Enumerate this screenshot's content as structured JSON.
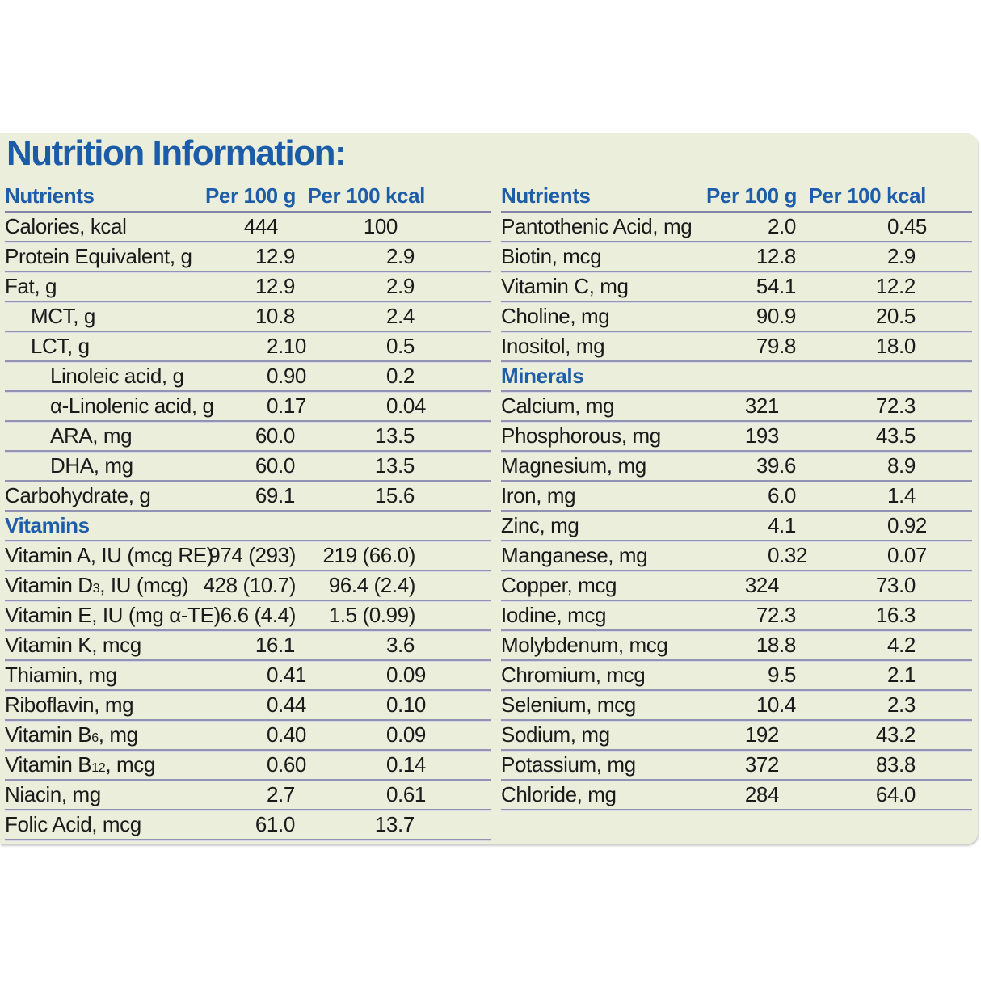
{
  "page": {
    "title": "Nutrition Information:"
  },
  "theme": {
    "panel_bg": "#eaeedb",
    "title_color": "#1b5ba7",
    "header_color": "#1e5da9",
    "text_color": "#1a1a1a",
    "line_color": "#9292b5"
  },
  "columns": {
    "nutrient": "Nutrients",
    "per100g": "Per 100 g",
    "per100kcal": "Per 100 kcal"
  },
  "tables": {
    "left": {
      "rows": [
        {
          "label": "Calories, kcal",
          "per100g": "444",
          "per100kcal": "100",
          "indent": 0
        },
        {
          "label": "Protein Equivalent, g",
          "per100g": "12.9",
          "per100kcal": "2.9",
          "indent": 0
        },
        {
          "label": "Fat, g",
          "per100g": "12.9",
          "per100kcal": "2.9",
          "indent": 0
        },
        {
          "label": "MCT, g",
          "per100g": "10.8",
          "per100kcal": "2.4",
          "indent": 1
        },
        {
          "label": "LCT, g",
          "per100g": "2.10",
          "per100kcal": "0.5",
          "indent": 1
        },
        {
          "label": "Linoleic acid, g",
          "per100g": "0.90",
          "per100kcal": "0.2",
          "indent": 2
        },
        {
          "label": "α-Linolenic acid, g",
          "per100g": "0.17",
          "per100kcal": "0.04",
          "indent": 2
        },
        {
          "label": "ARA, mg",
          "per100g": "60.0",
          "per100kcal": "13.5",
          "indent": 2
        },
        {
          "label": "DHA, mg",
          "per100g": "60.0",
          "per100kcal": "13.5",
          "indent": 2
        },
        {
          "label": "Carbohydrate, g",
          "per100g": "69.1",
          "per100kcal": "15.6",
          "indent": 0
        },
        {
          "section": "Vitamins"
        },
        {
          "label": "Vitamin A, IU (mcg RE)",
          "per100g": "974 (293)",
          "per100kcal": "219 (66.0)",
          "indent": 0
        },
        {
          "label": "Vitamin D~3~, IU (mcg)",
          "per100g": "428 (10.7)",
          "per100kcal": "96.4 (2.4)",
          "indent": 0
        },
        {
          "label": "Vitamin E, IU (mg α-TE)",
          "per100g": "6.6 (4.4)",
          "per100kcal": "1.5 (0.99)",
          "indent": 0
        },
        {
          "label": "Vitamin K, mcg",
          "per100g": "16.1",
          "per100kcal": "3.6",
          "indent": 0
        },
        {
          "label": "Thiamin, mg",
          "per100g": "0.41",
          "per100kcal": "0.09",
          "indent": 0
        },
        {
          "label": "Riboflavin, mg",
          "per100g": "0.44",
          "per100kcal": "0.10",
          "indent": 0
        },
        {
          "label": "Vitamin B~6~, mg",
          "per100g": "0.40",
          "per100kcal": "0.09",
          "indent": 0
        },
        {
          "label": "Vitamin B~12~, mcg",
          "per100g": "0.60",
          "per100kcal": "0.14",
          "indent": 0
        },
        {
          "label": "Niacin, mg",
          "per100g": "2.7",
          "per100kcal": "0.61",
          "indent": 0
        },
        {
          "label": "Folic Acid, mcg",
          "per100g": "61.0",
          "per100kcal": "13.7",
          "indent": 0
        }
      ]
    },
    "right": {
      "rows": [
        {
          "label": "Pantothenic Acid, mg",
          "per100g": "2.0",
          "per100kcal": "0.45",
          "indent": 0
        },
        {
          "label": "Biotin, mcg",
          "per100g": "12.8",
          "per100kcal": "2.9",
          "indent": 0
        },
        {
          "label": "Vitamin C, mg",
          "per100g": "54.1",
          "per100kcal": "12.2",
          "indent": 0
        },
        {
          "label": "Choline, mg",
          "per100g": "90.9",
          "per100kcal": "20.5",
          "indent": 0
        },
        {
          "label": "Inositol, mg",
          "per100g": "79.8",
          "per100kcal": "18.0",
          "indent": 0
        },
        {
          "section": "Minerals"
        },
        {
          "label": "Calcium, mg",
          "per100g": "321",
          "per100kcal": "72.3",
          "indent": 0
        },
        {
          "label": "Phosphorous, mg",
          "per100g": "193",
          "per100kcal": "43.5",
          "indent": 0
        },
        {
          "label": "Magnesium, mg",
          "per100g": "39.6",
          "per100kcal": "8.9",
          "indent": 0
        },
        {
          "label": "Iron, mg",
          "per100g": "6.0",
          "per100kcal": "1.4",
          "indent": 0
        },
        {
          "label": "Zinc, mg",
          "per100g": "4.1",
          "per100kcal": "0.92",
          "indent": 0
        },
        {
          "label": "Manganese, mg",
          "per100g": "0.32",
          "per100kcal": "0.07",
          "indent": 0
        },
        {
          "label": "Copper, mcg",
          "per100g": "324",
          "per100kcal": "73.0",
          "indent": 0
        },
        {
          "label": "Iodine, mcg",
          "per100g": "72.3",
          "per100kcal": "16.3",
          "indent": 0
        },
        {
          "label": "Molybdenum, mcg",
          "per100g": "18.8",
          "per100kcal": "4.2",
          "indent": 0
        },
        {
          "label": "Chromium, mcg",
          "per100g": "9.5",
          "per100kcal": "2.1",
          "indent": 0
        },
        {
          "label": "Selenium, mcg",
          "per100g": "10.4",
          "per100kcal": "2.3",
          "indent": 0
        },
        {
          "label": "Sodium, mg",
          "per100g": "192",
          "per100kcal": "43.2",
          "indent": 0
        },
        {
          "label": "Potassium, mg",
          "per100g": "372",
          "per100kcal": "83.8",
          "indent": 0
        },
        {
          "label": "Chloride, mg",
          "per100g": "284",
          "per100kcal": "64.0",
          "indent": 0
        }
      ]
    }
  }
}
